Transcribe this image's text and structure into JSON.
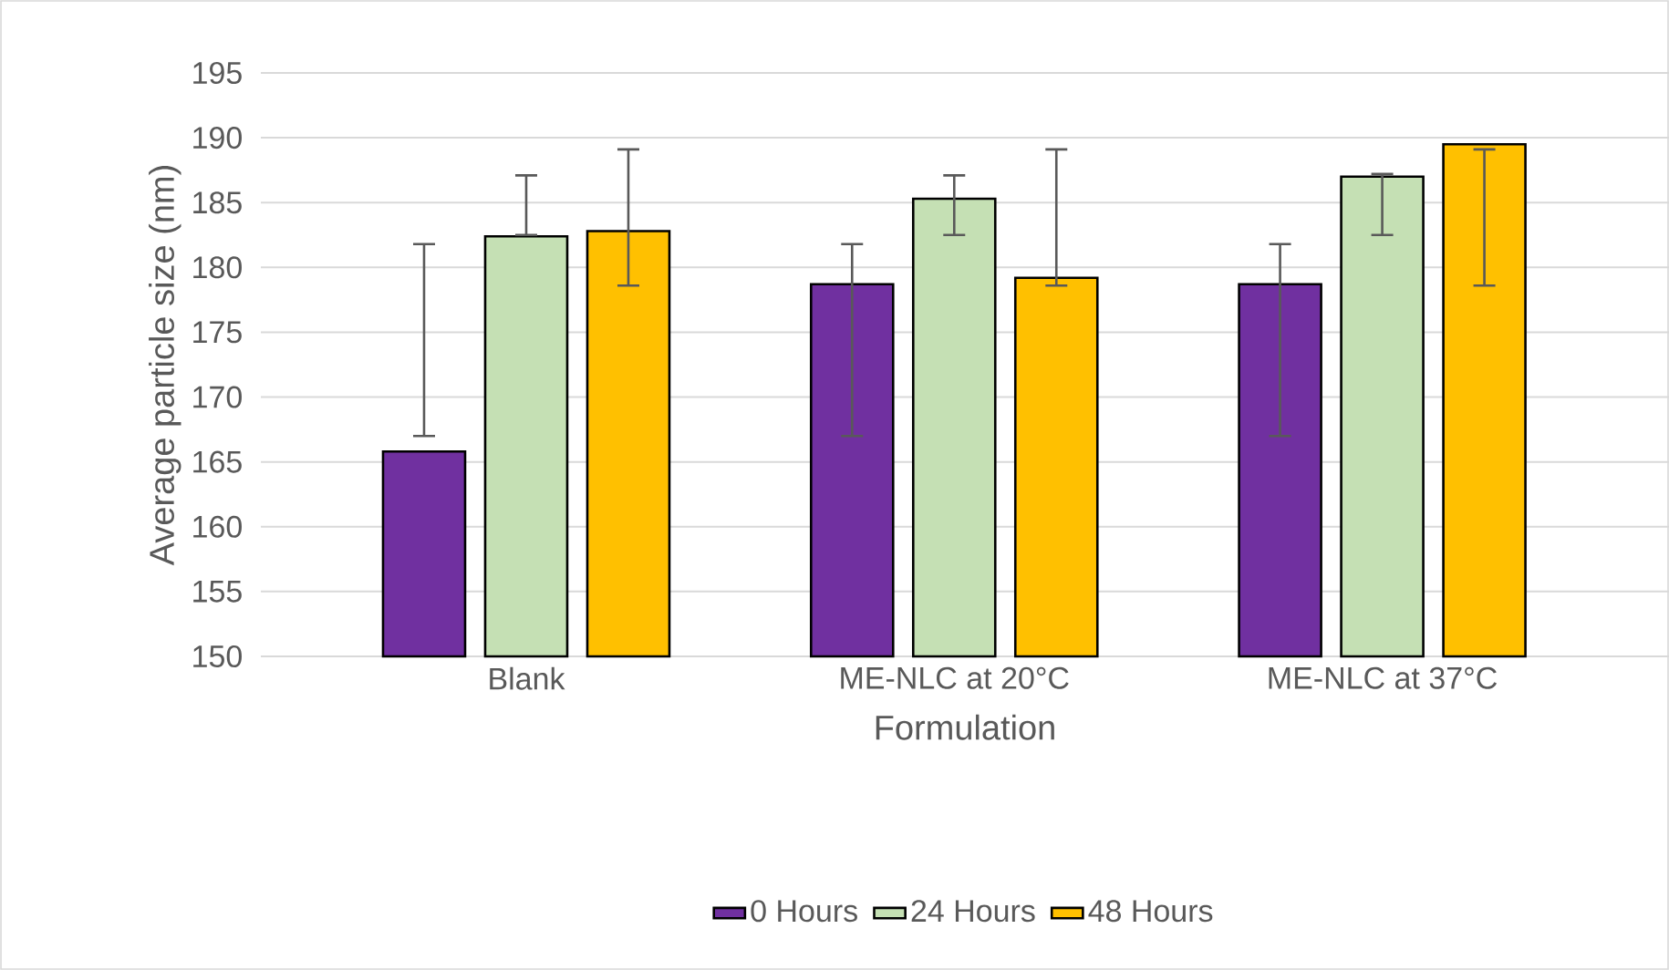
{
  "chart_data": {
    "type": "bar",
    "xlabel": "Formulation",
    "ylabel": "Average particle size (nm)",
    "categories": [
      "Blank",
      "ME-NLC at 20°C",
      "ME-NLC at 37°C"
    ],
    "series": [
      {
        "name": "0 Hours",
        "color": "#7030a0",
        "values": [
          165.8,
          178.7,
          178.7
        ],
        "errors": [
          [
            167.0,
            181.8
          ],
          [
            167.0,
            181.8
          ],
          [
            167.0,
            181.8
          ]
        ]
      },
      {
        "name": "24 Hours",
        "color": "#c5e0b4",
        "values": [
          182.4,
          185.3,
          187.0
        ],
        "errors": [
          [
            182.5,
            187.1
          ],
          [
            182.5,
            187.1
          ],
          [
            182.5,
            187.2
          ]
        ]
      },
      {
        "name": "48 Hours",
        "color": "#ffc000",
        "values": [
          182.8,
          179.2,
          189.5
        ],
        "errors": [
          [
            178.6,
            189.1
          ],
          [
            178.6,
            189.1
          ],
          [
            178.6,
            189.1
          ]
        ]
      }
    ],
    "ylim": [
      150,
      195
    ],
    "yticks": [
      150,
      155,
      160,
      165,
      170,
      175,
      180,
      185,
      190,
      195
    ],
    "grid": "y",
    "legend": "bottom"
  }
}
